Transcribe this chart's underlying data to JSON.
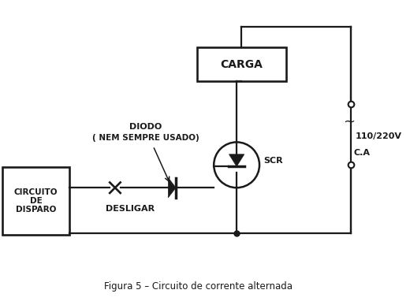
{
  "bg_color": "#ffffff",
  "line_color": "#1a1a1a",
  "title": "Figura 5 – Circuito de corrente alternada",
  "labels": {
    "carga": "CARGA",
    "scr": "SCR",
    "diodo_line1": "DIODO",
    "diodo_line2": "( NEM SEMPRE USADO)",
    "circuito": [
      "CIRCUITO",
      "DE",
      "DISPARO"
    ],
    "desligar": "DESLIGAR",
    "voltage": "110/220V",
    "ca": "C.A"
  },
  "figsize": [
    5.2,
    3.82
  ],
  "dpi": 100
}
